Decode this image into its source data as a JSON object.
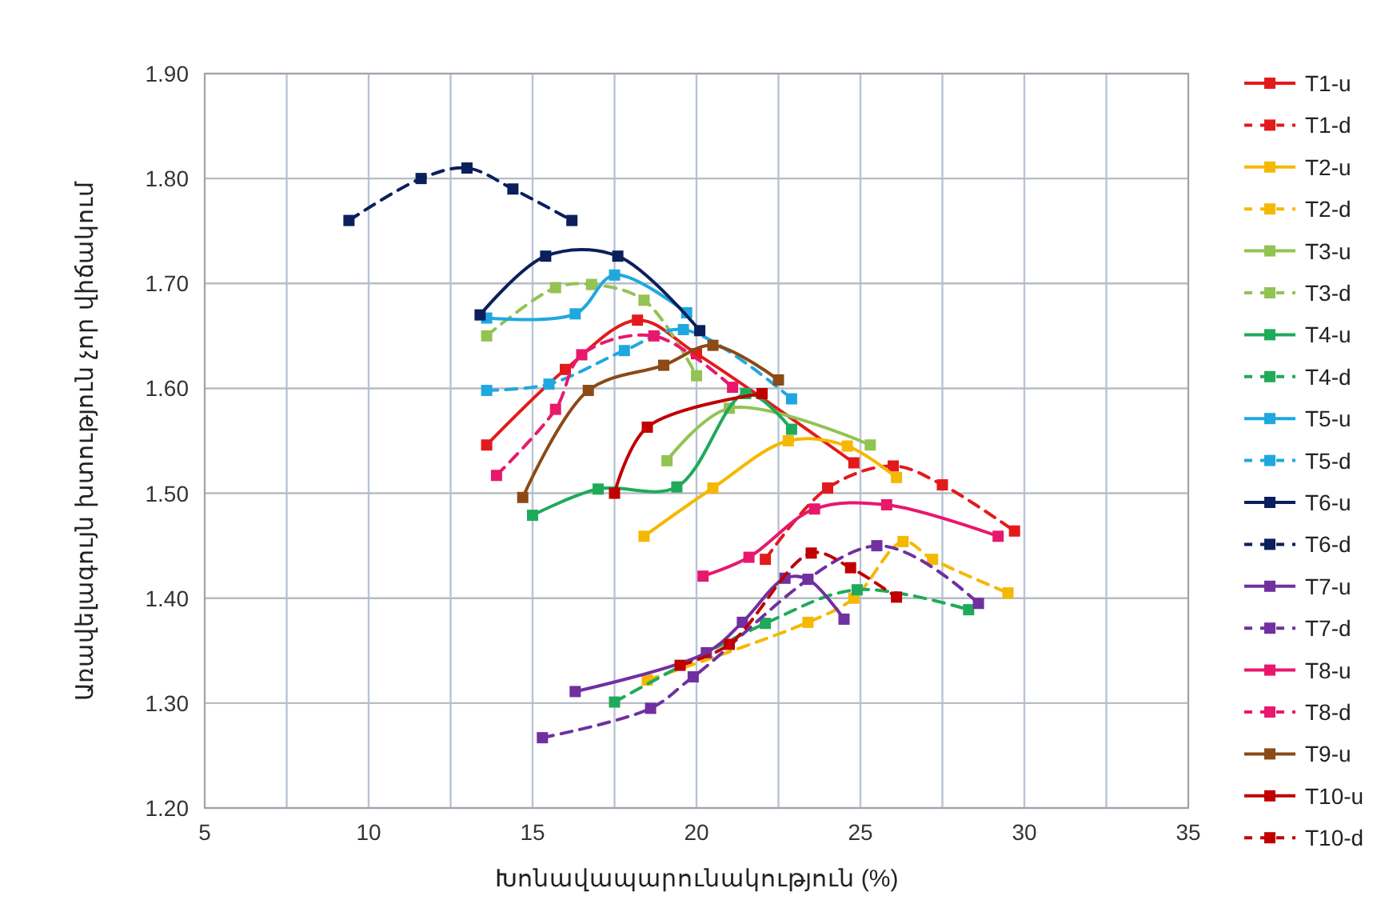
{
  "chart_data": {
    "type": "line",
    "xlabel": "Խոնավապարունակություն (%)",
    "ylabel": "Առավելագույն խտություն չոր վիճակում",
    "xlim": [
      5,
      35
    ],
    "ylim": [
      1.2,
      1.9
    ],
    "xticks": [
      5,
      {
        "value": 7.5,
        "label": null
      },
      10,
      {
        "value": 12.5,
        "label": null
      },
      15,
      {
        "value": 17.5,
        "label": null
      },
      20,
      {
        "value": 22.5,
        "label": null
      },
      25,
      {
        "value": 27.5,
        "label": null
      },
      30,
      {
        "value": 32.5,
        "label": null
      },
      35
    ],
    "yticks": [
      {
        "value": 1.2,
        "label": "1.20"
      },
      {
        "value": 1.3,
        "label": "1.30"
      },
      {
        "value": 1.4,
        "label": "1.40"
      },
      {
        "value": 1.5,
        "label": "1.50"
      },
      {
        "value": 1.6,
        "label": "1.60"
      },
      {
        "value": 1.7,
        "label": "1.70"
      },
      {
        "value": 1.8,
        "label": "1.80"
      },
      {
        "value": 1.9,
        "label": "1.90"
      }
    ],
    "grid": true,
    "legend": "right",
    "marker": "square",
    "series": [
      {
        "name": "T1-u",
        "color": "#e31a1c",
        "line_style": "solid",
        "x": [
          13.6,
          16.0,
          18.2,
          20.0,
          24.8
        ],
        "values": [
          1.546,
          1.618,
          1.665,
          1.633,
          1.529
        ]
      },
      {
        "name": "T1-d",
        "color": "#e31a1c",
        "line_style": "dashed",
        "x": [
          22.1,
          24.0,
          26.0,
          27.5,
          29.7
        ],
        "values": [
          1.437,
          1.505,
          1.526,
          1.508,
          1.464
        ]
      },
      {
        "name": "T2-u",
        "color": "#f5b800",
        "line_style": "solid",
        "x": [
          18.4,
          20.5,
          22.8,
          24.6,
          26.1
        ],
        "values": [
          1.459,
          1.505,
          1.55,
          1.545,
          1.515
        ]
      },
      {
        "name": "T2-d",
        "color": "#f5b800",
        "line_style": "dashed",
        "x": [
          18.5,
          23.4,
          24.8,
          26.3,
          27.2,
          29.5
        ],
        "values": [
          1.322,
          1.377,
          1.4,
          1.454,
          1.437,
          1.405
        ]
      },
      {
        "name": "T3-u",
        "color": "#92c353",
        "line_style": "solid",
        "x": [
          19.1,
          21.0,
          25.3
        ],
        "values": [
          1.531,
          1.581,
          1.546
        ]
      },
      {
        "name": "T3-d",
        "color": "#92c353",
        "line_style": "dashed",
        "x": [
          13.6,
          15.7,
          16.8,
          18.4,
          20.0
        ],
        "values": [
          1.65,
          1.696,
          1.699,
          1.684,
          1.612
        ]
      },
      {
        "name": "T4-u",
        "color": "#1faa5a",
        "line_style": "solid",
        "x": [
          15.0,
          17.0,
          19.4,
          21.5,
          22.9
        ],
        "values": [
          1.479,
          1.504,
          1.506,
          1.595,
          1.561
        ]
      },
      {
        "name": "T4-d",
        "color": "#1faa5a",
        "line_style": "dashed",
        "x": [
          17.5,
          20.0,
          22.1,
          24.9,
          28.3
        ],
        "values": [
          1.301,
          null,
          1.376,
          1.408,
          1.389
        ]
      },
      {
        "name": "T5-u",
        "color": "#1fa8e0",
        "line_style": "solid",
        "x": [
          13.6,
          16.3,
          17.5,
          19.7
        ],
        "values": [
          1.667,
          1.671,
          1.708,
          1.672
        ]
      },
      {
        "name": "T5-d",
        "color": "#1fa8e0",
        "line_style": "dashed",
        "x": [
          13.6,
          15.5,
          17.8,
          19.6,
          22.9
        ],
        "values": [
          1.598,
          1.604,
          1.636,
          1.656,
          1.59
        ]
      },
      {
        "name": "T6-u",
        "color": "#0b1f5c",
        "line_style": "solid",
        "x": [
          13.4,
          15.4,
          17.6,
          20.1
        ],
        "values": [
          1.67,
          1.726,
          1.726,
          1.655
        ]
      },
      {
        "name": "T6-d",
        "color": "#0b1f5c",
        "line_style": "dashed",
        "x": [
          9.4,
          11.6,
          13.0,
          14.4,
          16.2
        ],
        "values": [
          1.76,
          1.8,
          1.81,
          1.79,
          1.76
        ]
      },
      {
        "name": "T7-u",
        "color": "#7030a0",
        "line_style": "solid",
        "x": [
          16.3,
          20.3,
          21.4,
          22.7,
          23.4,
          24.5
        ],
        "values": [
          1.311,
          1.348,
          1.377,
          1.419,
          1.418,
          1.38
        ]
      },
      {
        "name": "T7-d",
        "color": "#7030a0",
        "line_style": "dashed",
        "x": [
          15.3,
          18.6,
          19.9,
          25.5,
          28.6
        ],
        "values": [
          1.267,
          1.295,
          1.325,
          1.45,
          1.395
        ]
      },
      {
        "name": "T8-u",
        "color": "#e8186d",
        "line_style": "solid",
        "x": [
          20.2,
          21.6,
          23.6,
          25.8,
          29.2
        ],
        "values": [
          1.421,
          1.439,
          1.485,
          1.489,
          1.459
        ]
      },
      {
        "name": "T8-d",
        "color": "#e8186d",
        "line_style": "dashed",
        "x": [
          13.9,
          15.7,
          16.5,
          18.7,
          21.1
        ],
        "values": [
          1.517,
          1.58,
          1.632,
          1.65,
          1.601
        ]
      },
      {
        "name": "T9-u",
        "color": "#8b4a16",
        "line_style": "solid",
        "x": [
          14.7,
          16.7,
          19.0,
          20.5,
          22.5
        ],
        "values": [
          1.496,
          1.598,
          1.622,
          1.641,
          1.608
        ]
      },
      {
        "name": "T10-u",
        "color": "#c00000",
        "line_style": "solid",
        "x": [
          17.5,
          18.5,
          22.0
        ],
        "values": [
          1.5,
          1.563,
          1.595
        ]
      },
      {
        "name": "T10-d",
        "color": "#c00000",
        "line_style": "dashed",
        "x": [
          19.5,
          21.0,
          23.5,
          24.7,
          26.1
        ],
        "values": [
          1.336,
          1.356,
          1.443,
          1.429,
          1.401
        ]
      }
    ]
  }
}
